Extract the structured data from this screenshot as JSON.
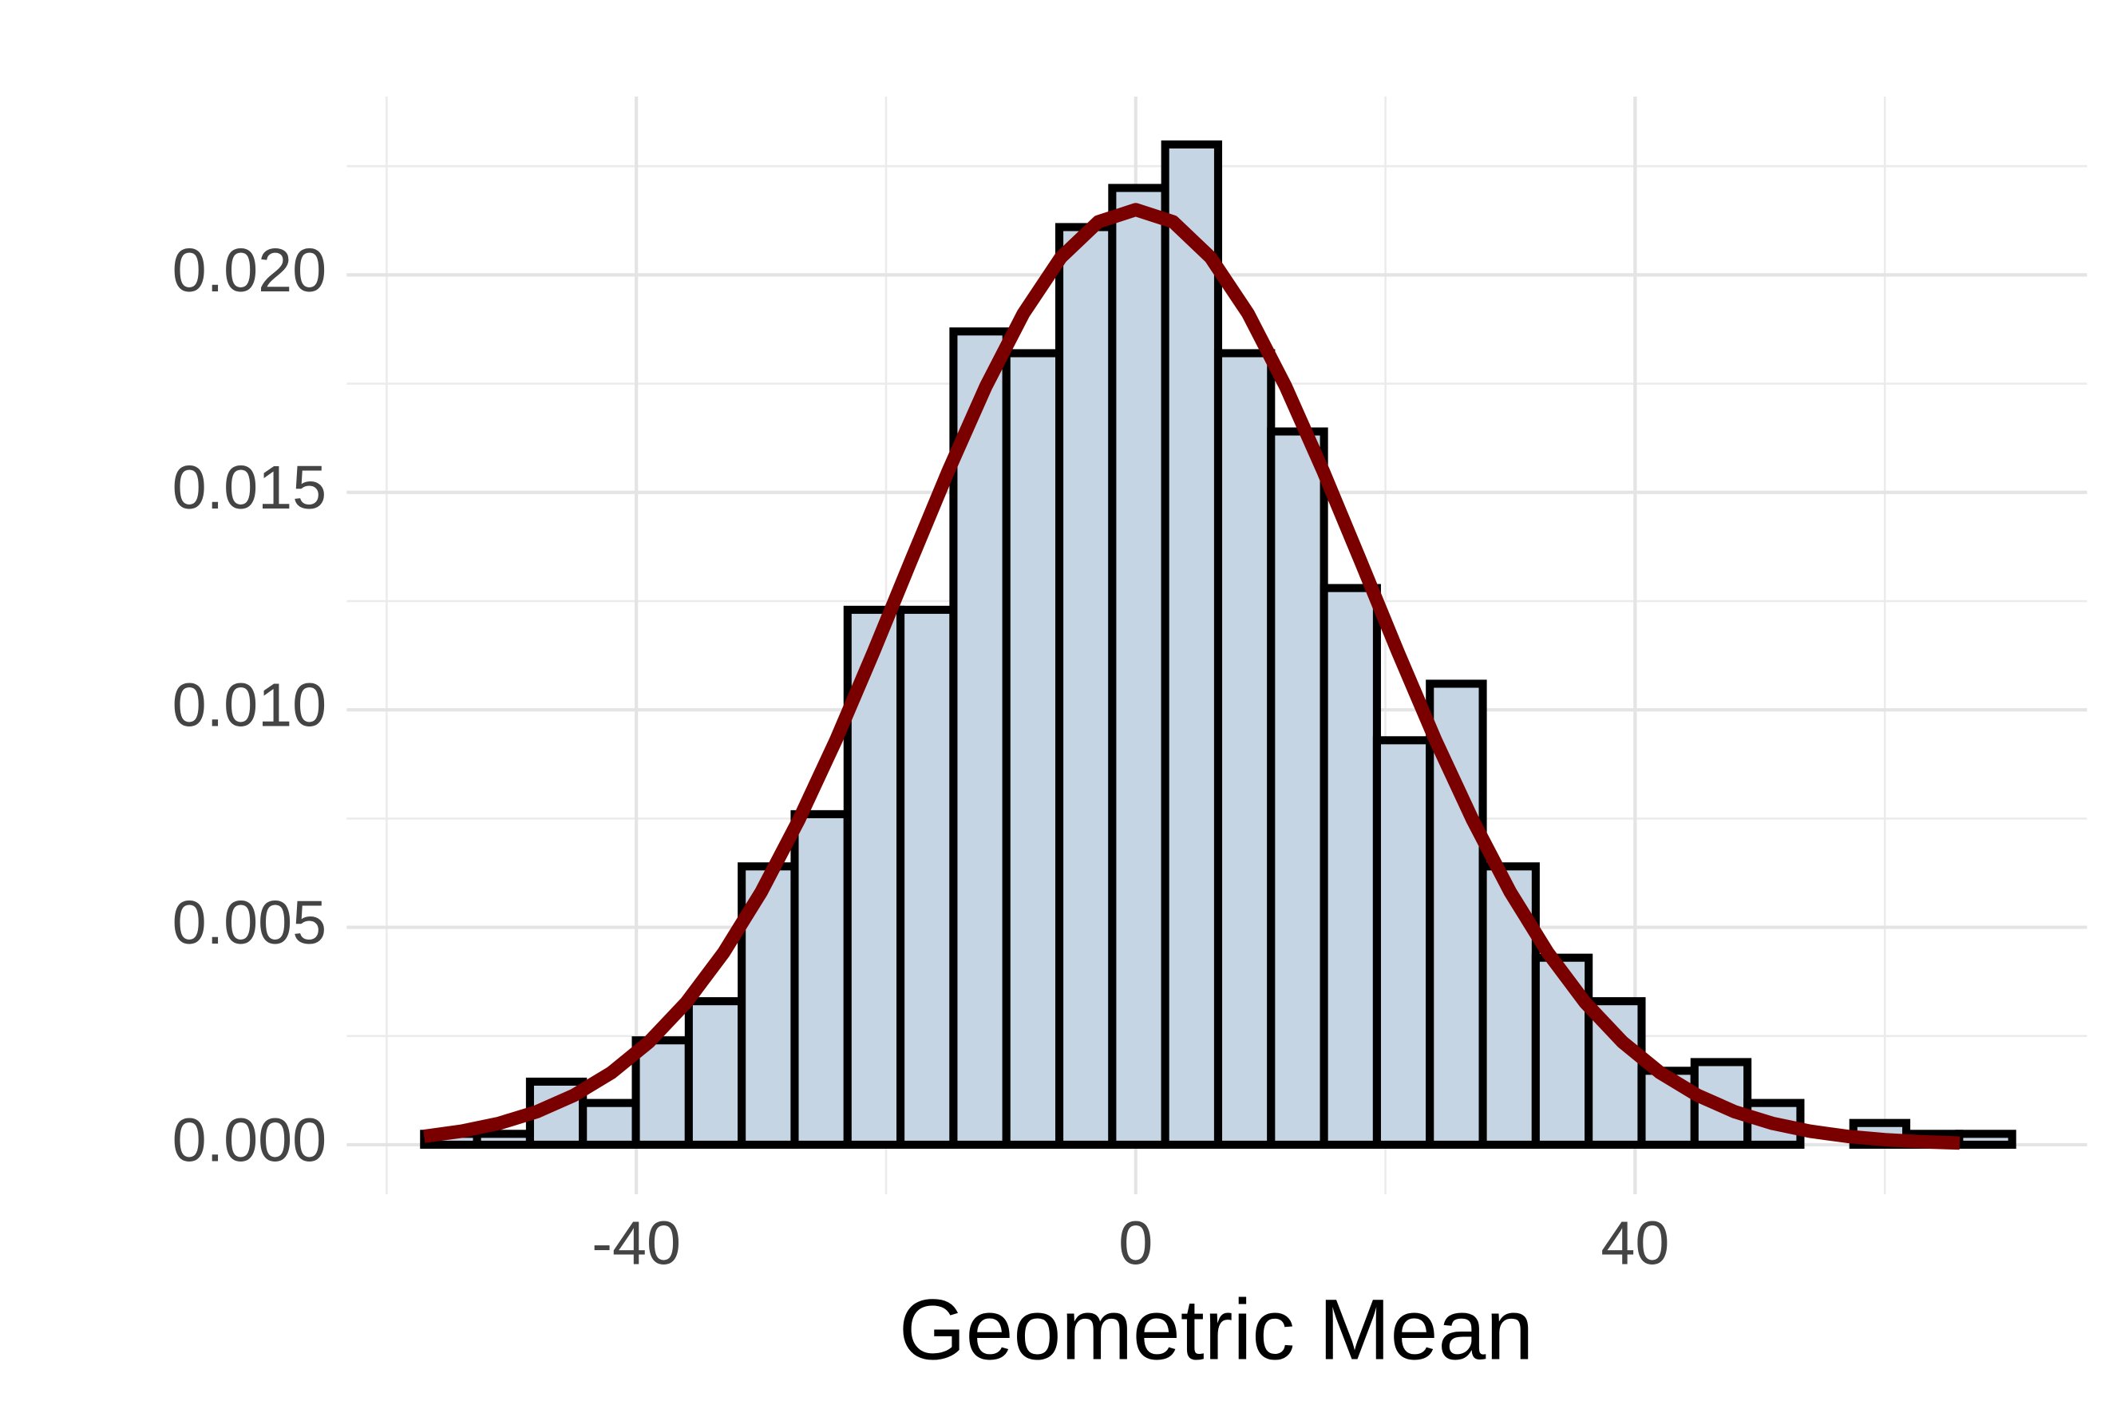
{
  "chart_data": {
    "type": "histogram",
    "x_label": "Geometric Mean",
    "bins": [
      -57.0,
      -52.76,
      -48.52,
      -44.28,
      -40.04,
      -35.8,
      -31.56,
      -27.32,
      -23.08,
      -18.84,
      -14.6,
      -10.36,
      -6.12,
      -1.88,
      2.36,
      6.6,
      10.84,
      15.08,
      19.32,
      23.56,
      27.8,
      32.04,
      36.28,
      40.52,
      44.76,
      49.0,
      53.24,
      57.48,
      61.72,
      65.96,
      70.2
    ],
    "values": [
      0.00025,
      0.00025,
      0.00145,
      0.00096,
      0.0024,
      0.0033,
      0.0064,
      0.0076,
      0.0123,
      0.0123,
      0.0187,
      0.0182,
      0.0211,
      0.022,
      0.023,
      0.0182,
      0.0164,
      0.0128,
      0.0093,
      0.0106,
      0.0064,
      0.0043,
      0.0033,
      0.0017,
      0.0019,
      0.00096,
      0,
      0.0005,
      0.00025,
      0.00025
    ],
    "color": "#c6d5e4",
    "edge_color": "#000000",
    "curve": {
      "color": "#7a0000",
      "x": [
        -57,
        -54,
        -51,
        -48,
        -45,
        -42,
        -39,
        -36,
        -33,
        -30,
        -27,
        -24,
        -21,
        -18,
        -15,
        -12,
        -9,
        -6,
        -3,
        0,
        3,
        6,
        9,
        12,
        15,
        18,
        21,
        24,
        27,
        30,
        33,
        36,
        39,
        42,
        45,
        48,
        51,
        54,
        57,
        60,
        63,
        66
      ],
      "values": [
        0.000192,
        0.000311,
        0.000491,
        0.000756,
        0.001135,
        0.001657,
        0.002359,
        0.00327,
        0.00442,
        0.00581,
        0.00746,
        0.00931,
        0.01133,
        0.01343,
        0.0155,
        0.01744,
        0.01911,
        0.0204,
        0.02122,
        0.0215,
        0.02122,
        0.0204,
        0.01911,
        0.01744,
        0.0155,
        0.01343,
        0.01133,
        0.00931,
        0.00746,
        0.00581,
        0.00442,
        0.00327,
        0.002359,
        0.001657,
        0.001135,
        0.000756,
        0.000491,
        0.000311,
        0.000192,
        0.000115,
        6.73e-05,
        3.83e-05
      ]
    },
    "xlim": [
      -63.2,
      76.2
    ],
    "ylim": [
      -0.00114,
      0.0241
    ],
    "xticks": [
      -40,
      0,
      40
    ],
    "yticks": [
      {
        "value": 0,
        "label": "0.000"
      },
      {
        "value": 0.005,
        "label": "0.005"
      },
      {
        "value": 0.01,
        "label": "0.010"
      },
      {
        "value": 0.015,
        "label": "0.015"
      },
      {
        "value": 0.02,
        "label": "0.020"
      }
    ],
    "grid": true
  }
}
